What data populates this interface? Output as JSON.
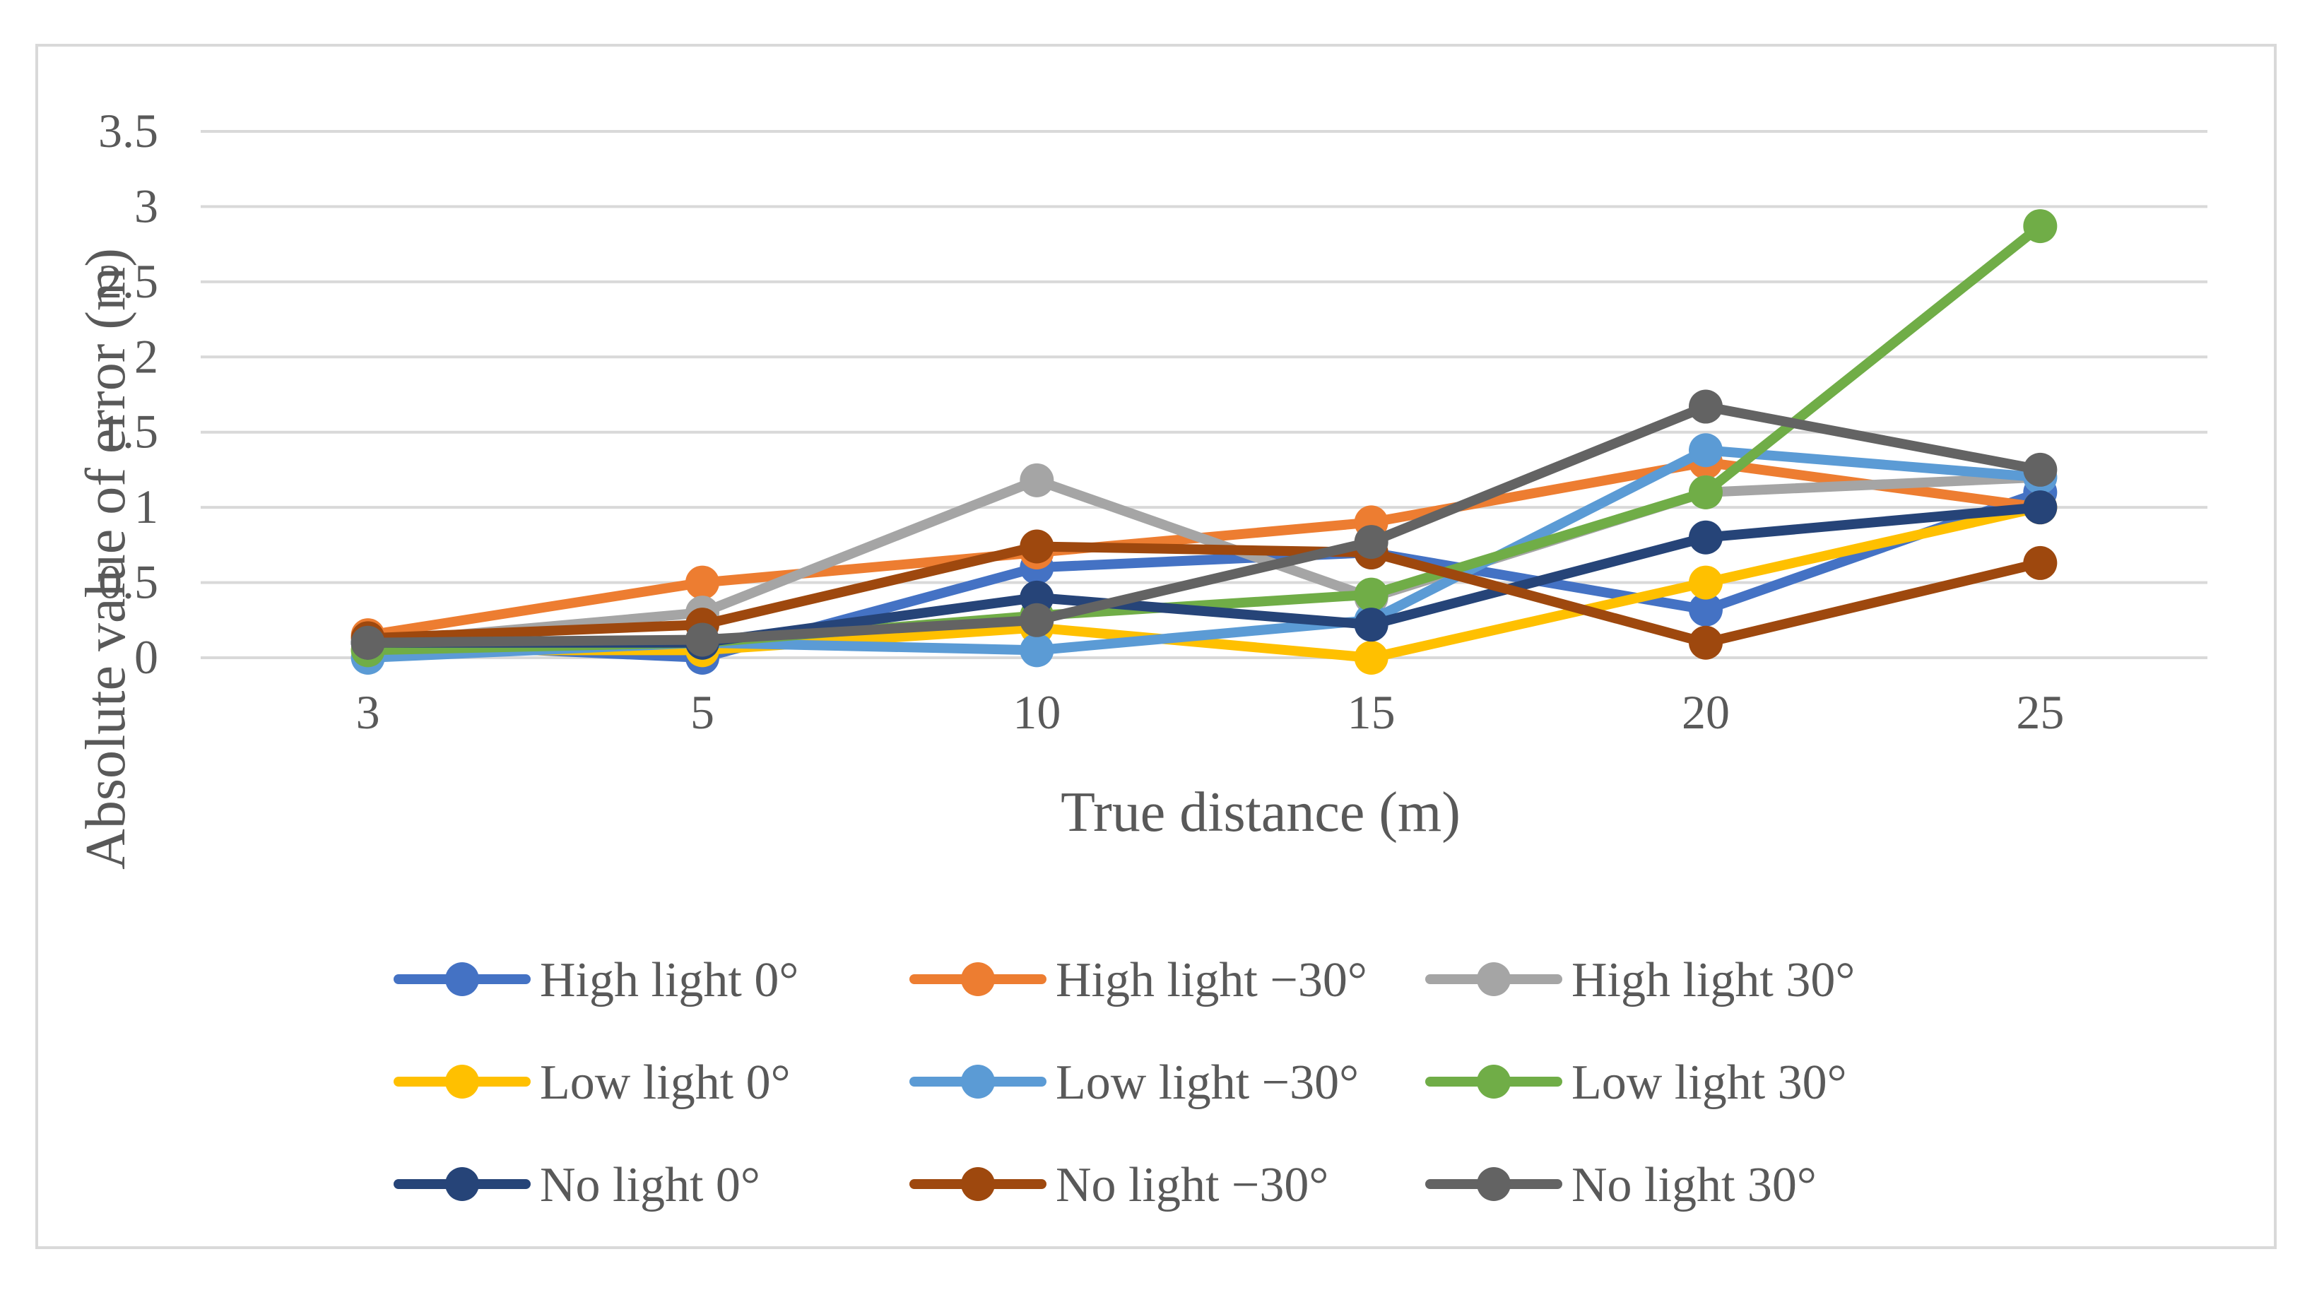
{
  "chart_data": {
    "type": "line",
    "title": "",
    "xlabel": "True distance (m)",
    "ylabel": "Absolute value of error (m)",
    "categories": [
      "3",
      "5",
      "10",
      "15",
      "20",
      "25"
    ],
    "yticks": [
      "0",
      "0.5",
      "1",
      "1.5",
      "2",
      "2.5",
      "3",
      "3.5"
    ],
    "ylim": [
      0,
      3.5
    ],
    "grid": true,
    "legend_position": "bottom",
    "series": [
      {
        "name": "High light 0°",
        "color": "#4472C4",
        "values": [
          0.1,
          0.0,
          0.6,
          0.7,
          0.32,
          1.1
        ]
      },
      {
        "name": "High light −30°",
        "color": "#ED7D31",
        "values": [
          0.15,
          0.5,
          0.7,
          0.9,
          1.3,
          1.0
        ]
      },
      {
        "name": "High light 30°",
        "color": "#A5A5A5",
        "values": [
          0.1,
          0.3,
          1.18,
          0.4,
          1.1,
          1.2
        ]
      },
      {
        "name": "Low light 0°",
        "color": "#FFC000",
        "values": [
          0.05,
          0.05,
          0.2,
          0.0,
          0.5,
          1.0
        ]
      },
      {
        "name": "Low light −30°",
        "color": "#5B9BD5",
        "values": [
          0.0,
          0.1,
          0.05,
          0.25,
          1.38,
          1.2
        ]
      },
      {
        "name": "Low light 30°",
        "color": "#70AD47",
        "values": [
          0.05,
          0.1,
          0.28,
          0.42,
          1.1,
          2.87
        ]
      },
      {
        "name": "No light 0°",
        "color": "#264478",
        "values": [
          0.1,
          0.1,
          0.4,
          0.22,
          0.8,
          1.0
        ]
      },
      {
        "name": "No light −30°",
        "color": "#9E480E",
        "values": [
          0.13,
          0.22,
          0.74,
          0.7,
          0.1,
          0.63
        ]
      },
      {
        "name": "No light 30°",
        "color": "#636363",
        "values": [
          0.1,
          0.12,
          0.25,
          0.77,
          1.67,
          1.25
        ]
      }
    ]
  }
}
